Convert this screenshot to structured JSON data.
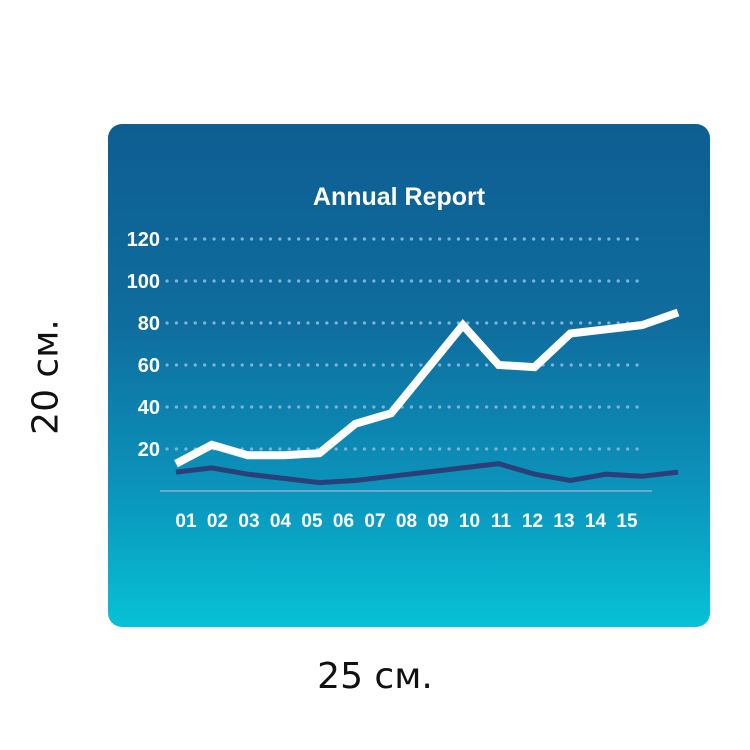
{
  "dimensions": {
    "width_label": "25 см.",
    "height_label": "20 см."
  },
  "colors": {
    "background_top": "#0e5e92",
    "background_bottom": "#07c1d6",
    "series_light": "#ffffff",
    "series_dark": "#2b3f7a",
    "gridline": "#7fb3d3",
    "baseline": "#6fa8cf",
    "text": "#ffffff"
  },
  "chart_data": {
    "type": "line",
    "title": "Annual Report",
    "xlabel": "",
    "ylabel": "",
    "categories": [
      "01",
      "02",
      "03",
      "04",
      "05",
      "06",
      "07",
      "08",
      "09",
      "10",
      "11",
      "12",
      "13",
      "14",
      "15"
    ],
    "yticks": [
      20,
      40,
      60,
      80,
      100,
      120
    ],
    "ylim": [
      0,
      120
    ],
    "grid": true,
    "grid_style": "dotted",
    "legend": "none",
    "series": [
      {
        "color": "#ffffff",
        "values": [
          13,
          22,
          17,
          17,
          18,
          32,
          37,
          58,
          79,
          60,
          59,
          75,
          77,
          79,
          85
        ]
      },
      {
        "color": "#2b3f7a",
        "values": [
          9,
          11,
          8,
          6,
          4,
          5,
          7,
          9,
          11,
          13,
          8,
          5,
          8,
          7,
          9
        ]
      }
    ]
  }
}
